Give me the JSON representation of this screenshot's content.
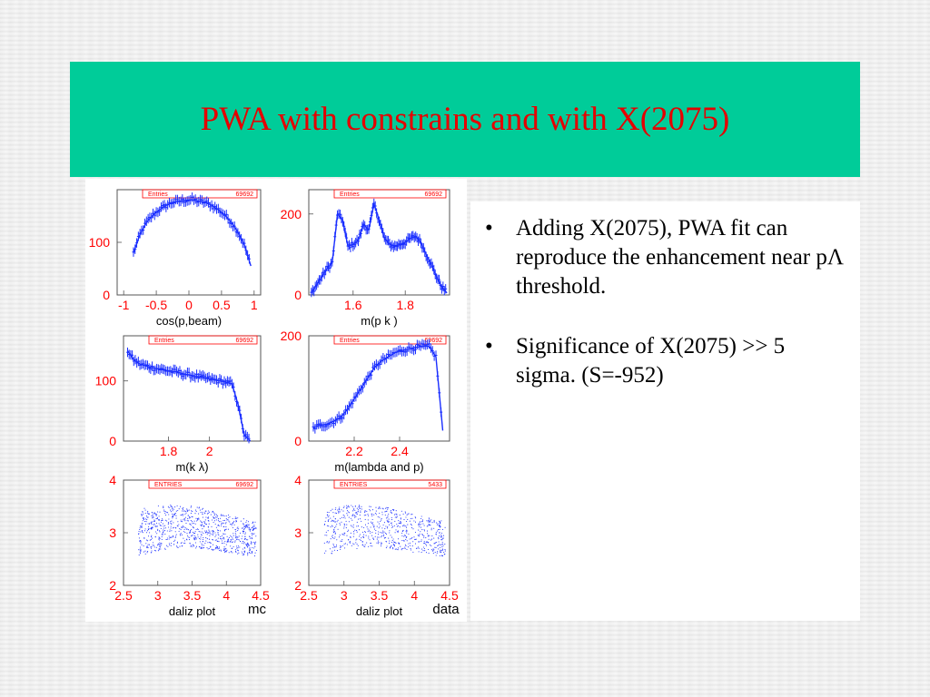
{
  "slide": {
    "title": "PWA with constrains and with X(2075)",
    "bullets": [
      {
        "symbol": "•",
        "text": "Adding X(2075), PWA fit can reproduce the enhancement near pΛ threshold."
      },
      {
        "symbol": "•",
        "text": "Significance of X(2075) >> 5 sigma.  (S=-952)"
      }
    ]
  },
  "colors": {
    "banner": "#00cc99",
    "title": "#e60000",
    "hist": "#1a2eff",
    "axis": "#ff0000",
    "frame": "#555555"
  },
  "chart_data": [
    {
      "type": "line",
      "stats_label": "Entries",
      "stats_value": "69692",
      "xlabel": "cos(p,beam)",
      "ylabel": "",
      "xlim": [
        -1.1,
        1.1
      ],
      "ylim": [
        0,
        200
      ],
      "xticks": [
        "-1",
        "-0.5",
        "0",
        "0.5",
        "1"
      ],
      "xtick_values": [
        -1,
        -0.5,
        0,
        0.5,
        1
      ],
      "yticks": [
        "0",
        "100"
      ],
      "ytick_values": [
        0,
        100
      ],
      "x": [
        -0.85,
        -0.75,
        -0.65,
        -0.55,
        -0.45,
        -0.35,
        -0.25,
        -0.15,
        -0.05,
        0.05,
        0.15,
        0.25,
        0.35,
        0.45,
        0.55,
        0.65,
        0.75,
        0.85,
        0.95
      ],
      "y": [
        80,
        115,
        138,
        152,
        162,
        170,
        176,
        178,
        180,
        181,
        178,
        176,
        170,
        162,
        152,
        138,
        120,
        95,
        55
      ],
      "extra_label": ""
    },
    {
      "type": "line",
      "stats_label": "Entries",
      "stats_value": "69692",
      "xlabel": "m(p k )",
      "ylabel": "",
      "xlim": [
        1.43,
        1.97
      ],
      "ylim": [
        0,
        260
      ],
      "xticks": [
        "1.6",
        "1.8"
      ],
      "xtick_values": [
        1.6,
        1.8
      ],
      "yticks": [
        "0",
        "200"
      ],
      "ytick_values": [
        0,
        200
      ],
      "x": [
        1.44,
        1.46,
        1.48,
        1.5,
        1.52,
        1.54,
        1.56,
        1.58,
        1.6,
        1.62,
        1.64,
        1.66,
        1.68,
        1.7,
        1.72,
        1.74,
        1.76,
        1.78,
        1.8,
        1.82,
        1.84,
        1.86,
        1.88,
        1.9,
        1.92,
        1.94,
        1.96
      ],
      "y": [
        5,
        25,
        45,
        65,
        80,
        200,
        185,
        120,
        125,
        135,
        175,
        160,
        225,
        185,
        140,
        125,
        120,
        125,
        130,
        140,
        145,
        130,
        100,
        75,
        45,
        20,
        5
      ],
      "extra_label": ""
    },
    {
      "type": "line",
      "stats_label": "Entries",
      "stats_value": "69692",
      "xlabel": "m(k  λ)",
      "ylabel": "",
      "xlim": [
        1.58,
        2.25
      ],
      "ylim": [
        0,
        175
      ],
      "xticks": [
        "1.8",
        "2"
      ],
      "xtick_values": [
        1.8,
        2.0
      ],
      "yticks": [
        "0",
        "100"
      ],
      "ytick_values": [
        0,
        100
      ],
      "x": [
        1.6,
        1.63,
        1.66,
        1.69,
        1.72,
        1.75,
        1.78,
        1.81,
        1.84,
        1.87,
        1.9,
        1.93,
        1.96,
        1.99,
        2.02,
        2.05,
        2.08,
        2.11,
        2.14,
        2.17,
        2.2
      ],
      "y": [
        150,
        135,
        128,
        125,
        122,
        120,
        118,
        116,
        115,
        112,
        110,
        108,
        106,
        104,
        102,
        100,
        98,
        95,
        60,
        10,
        0
      ],
      "extra_label": ""
    },
    {
      "type": "line",
      "stats_label": "Entries",
      "stats_value": "69692",
      "xlabel": "m(lambda and p)",
      "ylabel": "",
      "xlim": [
        2.0,
        2.62
      ],
      "ylim": [
        0,
        200
      ],
      "xticks": [
        "2.2",
        "2.4"
      ],
      "xtick_values": [
        2.2,
        2.4
      ],
      "yticks": [
        "0",
        "200"
      ],
      "ytick_values": [
        0,
        200
      ],
      "x": [
        2.02,
        2.05,
        2.08,
        2.11,
        2.14,
        2.17,
        2.2,
        2.23,
        2.26,
        2.29,
        2.32,
        2.35,
        2.38,
        2.41,
        2.44,
        2.47,
        2.5,
        2.53,
        2.56,
        2.59
      ],
      "y": [
        25,
        30,
        32,
        38,
        45,
        60,
        80,
        100,
        120,
        140,
        152,
        160,
        168,
        172,
        175,
        178,
        180,
        180,
        160,
        20
      ],
      "extra_label": ""
    },
    {
      "type": "scatter",
      "stats_label": "ENTRIES",
      "stats_value": "69692",
      "xlabel": "daliz plot",
      "ylabel": "",
      "xlim": [
        2.5,
        4.5
      ],
      "ylim": [
        2,
        4
      ],
      "xticks": [
        "2.5",
        "3",
        "3.5",
        "4",
        "4.5"
      ],
      "xtick_values": [
        2.5,
        3,
        3.5,
        4,
        4.5
      ],
      "yticks": [
        "2",
        "3",
        "4"
      ],
      "ytick_values": [
        2,
        3,
        4
      ],
      "extra_label": "mc"
    },
    {
      "type": "scatter",
      "stats_label": "ENTRIES",
      "stats_value": "5433",
      "xlabel": "daliz plot",
      "ylabel": "",
      "xlim": [
        2.5,
        4.5
      ],
      "ylim": [
        2,
        4
      ],
      "xticks": [
        "2.5",
        "3",
        "3.5",
        "4",
        "4.5"
      ],
      "xtick_values": [
        2.5,
        3,
        3.5,
        4,
        4.5
      ],
      "yticks": [
        "2",
        "3",
        "4"
      ],
      "ytick_values": [
        2,
        3,
        4
      ],
      "extra_label": "data"
    }
  ]
}
